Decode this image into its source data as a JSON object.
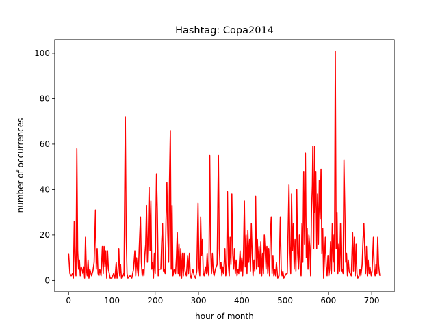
{
  "chart_data": {
    "type": "line",
    "title": "Hashtag: Copa2014",
    "xlabel": "hour of month",
    "ylabel": "number of occurrences",
    "xlim": [
      -32,
      752
    ],
    "ylim": [
      -5,
      106
    ],
    "xticks": [
      0,
      100,
      200,
      300,
      400,
      500,
      600,
      700
    ],
    "yticks": [
      0,
      20,
      40,
      60,
      80,
      100
    ],
    "grid": false,
    "legend": "none",
    "series": [
      {
        "color": "#ff0000",
        "points": [
          [
            0,
            12
          ],
          [
            3,
            3
          ],
          [
            6,
            2
          ],
          [
            9,
            3
          ],
          [
            11,
            1
          ],
          [
            13,
            26
          ],
          [
            15,
            8
          ],
          [
            17,
            2
          ],
          [
            19,
            58
          ],
          [
            21,
            13
          ],
          [
            23,
            5
          ],
          [
            25,
            9
          ],
          [
            27,
            2
          ],
          [
            29,
            6
          ],
          [
            31,
            5
          ],
          [
            33,
            3
          ],
          [
            35,
            6
          ],
          [
            37,
            1
          ],
          [
            39,
            19
          ],
          [
            41,
            5
          ],
          [
            43,
            2
          ],
          [
            45,
            9
          ],
          [
            47,
            1
          ],
          [
            49,
            5
          ],
          [
            53,
            2
          ],
          [
            56,
            4
          ],
          [
            59,
            8
          ],
          [
            62,
            31
          ],
          [
            64,
            5
          ],
          [
            66,
            14
          ],
          [
            68,
            3
          ],
          [
            70,
            2
          ],
          [
            72,
            5
          ],
          [
            75,
            2
          ],
          [
            78,
            15
          ],
          [
            80,
            3
          ],
          [
            82,
            15
          ],
          [
            84,
            6
          ],
          [
            86,
            13
          ],
          [
            88,
            1
          ],
          [
            90,
            13
          ],
          [
            92,
            5
          ],
          [
            94,
            3
          ],
          [
            96,
            1
          ],
          [
            100,
            1
          ],
          [
            104,
            3
          ],
          [
            107,
            1
          ],
          [
            110,
            8
          ],
          [
            112,
            1
          ],
          [
            114,
            3
          ],
          [
            116,
            14
          ],
          [
            118,
            2
          ],
          [
            120,
            7
          ],
          [
            122,
            1
          ],
          [
            126,
            3
          ],
          [
            128,
            2
          ],
          [
            131,
            72
          ],
          [
            133,
            20
          ],
          [
            135,
            3
          ],
          [
            137,
            1
          ],
          [
            142,
            2
          ],
          [
            146,
            1
          ],
          [
            150,
            5
          ],
          [
            153,
            13
          ],
          [
            155,
            2
          ],
          [
            157,
            10
          ],
          [
            159,
            5
          ],
          [
            161,
            2
          ],
          [
            163,
            14
          ],
          [
            166,
            28
          ],
          [
            168,
            8
          ],
          [
            170,
            2
          ],
          [
            172,
            5
          ],
          [
            174,
            2
          ],
          [
            176,
            11
          ],
          [
            178,
            16
          ],
          [
            180,
            33
          ],
          [
            182,
            8
          ],
          [
            184,
            20
          ],
          [
            186,
            41
          ],
          [
            188,
            13
          ],
          [
            190,
            35
          ],
          [
            192,
            5
          ],
          [
            194,
            8
          ],
          [
            196,
            1
          ],
          [
            198,
            12
          ],
          [
            200,
            3
          ],
          [
            203,
            47
          ],
          [
            205,
            30
          ],
          [
            207,
            2
          ],
          [
            209,
            5
          ],
          [
            213,
            5
          ],
          [
            215,
            17
          ],
          [
            217,
            25
          ],
          [
            219,
            4
          ],
          [
            221,
            5
          ],
          [
            223,
            3
          ],
          [
            225,
            26
          ],
          [
            227,
            43
          ],
          [
            229,
            21
          ],
          [
            231,
            8
          ],
          [
            233,
            44
          ],
          [
            235,
            66
          ],
          [
            237,
            5
          ],
          [
            239,
            33
          ],
          [
            241,
            2
          ],
          [
            244,
            5
          ],
          [
            247,
            3
          ],
          [
            249,
            10
          ],
          [
            251,
            21
          ],
          [
            253,
            3
          ],
          [
            255,
            16
          ],
          [
            257,
            2
          ],
          [
            259,
            14
          ],
          [
            261,
            1
          ],
          [
            263,
            12
          ],
          [
            265,
            2
          ],
          [
            267,
            12
          ],
          [
            269,
            4
          ],
          [
            272,
            2
          ],
          [
            275,
            11
          ],
          [
            277,
            3
          ],
          [
            279,
            12
          ],
          [
            281,
            2
          ],
          [
            283,
            1
          ],
          [
            287,
            5
          ],
          [
            290,
            2
          ],
          [
            293,
            1
          ],
          [
            296,
            4
          ],
          [
            299,
            34
          ],
          [
            301,
            6
          ],
          [
            303,
            2
          ],
          [
            305,
            28
          ],
          [
            307,
            11
          ],
          [
            309,
            18
          ],
          [
            311,
            3
          ],
          [
            313,
            2
          ],
          [
            316,
            6
          ],
          [
            318,
            3
          ],
          [
            320,
            12
          ],
          [
            322,
            4
          ],
          [
            324,
            2
          ],
          [
            326,
            55
          ],
          [
            328,
            14
          ],
          [
            330,
            3
          ],
          [
            332,
            12
          ],
          [
            334,
            4
          ],
          [
            336,
            2
          ],
          [
            339,
            5
          ],
          [
            343,
            7
          ],
          [
            346,
            55
          ],
          [
            348,
            14
          ],
          [
            350,
            5
          ],
          [
            352,
            8
          ],
          [
            354,
            2
          ],
          [
            356,
            6
          ],
          [
            358,
            3
          ],
          [
            361,
            14
          ],
          [
            363,
            2
          ],
          [
            365,
            7
          ],
          [
            367,
            39
          ],
          [
            369,
            7
          ],
          [
            371,
            2
          ],
          [
            373,
            19
          ],
          [
            375,
            7
          ],
          [
            377,
            38
          ],
          [
            379,
            12
          ],
          [
            381,
            5
          ],
          [
            383,
            14
          ],
          [
            385,
            3
          ],
          [
            387,
            9
          ],
          [
            389,
            2
          ],
          [
            391,
            5
          ],
          [
            393,
            3
          ],
          [
            396,
            13
          ],
          [
            398,
            4
          ],
          [
            400,
            10
          ],
          [
            402,
            2
          ],
          [
            404,
            13
          ],
          [
            406,
            35
          ],
          [
            408,
            6
          ],
          [
            410,
            20
          ],
          [
            412,
            3
          ],
          [
            414,
            22
          ],
          [
            416,
            8
          ],
          [
            418,
            18
          ],
          [
            420,
            4
          ],
          [
            422,
            25
          ],
          [
            424,
            12
          ],
          [
            426,
            2
          ],
          [
            428,
            9
          ],
          [
            430,
            4
          ],
          [
            432,
            37
          ],
          [
            434,
            5
          ],
          [
            436,
            18
          ],
          [
            438,
            6
          ],
          [
            440,
            15
          ],
          [
            442,
            3
          ],
          [
            444,
            17
          ],
          [
            446,
            2
          ],
          [
            448,
            12
          ],
          [
            450,
            3
          ],
          [
            452,
            20
          ],
          [
            454,
            13
          ],
          [
            456,
            5
          ],
          [
            458,
            15
          ],
          [
            460,
            3
          ],
          [
            462,
            14
          ],
          [
            464,
            2
          ],
          [
            466,
            20
          ],
          [
            468,
            28
          ],
          [
            470,
            3
          ],
          [
            472,
            11
          ],
          [
            474,
            2
          ],
          [
            476,
            5
          ],
          [
            478,
            2
          ],
          [
            480,
            8
          ],
          [
            483,
            1
          ],
          [
            486,
            2
          ],
          [
            489,
            28
          ],
          [
            491,
            5
          ],
          [
            493,
            2
          ],
          [
            495,
            4
          ],
          [
            497,
            1
          ],
          [
            500,
            2
          ],
          [
            503,
            3
          ],
          [
            505,
            3
          ],
          [
            507,
            22
          ],
          [
            509,
            42
          ],
          [
            511,
            15
          ],
          [
            513,
            3
          ],
          [
            515,
            38
          ],
          [
            517,
            13
          ],
          [
            519,
            25
          ],
          [
            521,
            5
          ],
          [
            523,
            18
          ],
          [
            525,
            4
          ],
          [
            527,
            40
          ],
          [
            529,
            12
          ],
          [
            531,
            5
          ],
          [
            533,
            20
          ],
          [
            535,
            5
          ],
          [
            537,
            2
          ],
          [
            539,
            25
          ],
          [
            541,
            8
          ],
          [
            543,
            48
          ],
          [
            545,
            16
          ],
          [
            547,
            56
          ],
          [
            549,
            10
          ],
          [
            551,
            23
          ],
          [
            553,
            5
          ],
          [
            555,
            20
          ],
          [
            557,
            15
          ],
          [
            559,
            2
          ],
          [
            561,
            30
          ],
          [
            563,
            42
          ],
          [
            564,
            59
          ],
          [
            566,
            14
          ],
          [
            568,
            59
          ],
          [
            569,
            30
          ],
          [
            571,
            48
          ],
          [
            573,
            14
          ],
          [
            575,
            38
          ],
          [
            577,
            16
          ],
          [
            579,
            44
          ],
          [
            581,
            27
          ],
          [
            583,
            49
          ],
          [
            585,
            12
          ],
          [
            587,
            23
          ],
          [
            589,
            1
          ],
          [
            593,
            19
          ],
          [
            595,
            6
          ],
          [
            597,
            2
          ],
          [
            599,
            11
          ],
          [
            601,
            2
          ],
          [
            603,
            5
          ],
          [
            605,
            17
          ],
          [
            607,
            3
          ],
          [
            609,
            25
          ],
          [
            611,
            8
          ],
          [
            613,
            20
          ],
          [
            614,
            4
          ],
          [
            616,
            101
          ],
          [
            618,
            14
          ],
          [
            620,
            30
          ],
          [
            622,
            3
          ],
          [
            624,
            16
          ],
          [
            626,
            4
          ],
          [
            628,
            25
          ],
          [
            630,
            4
          ],
          [
            632,
            5
          ],
          [
            634,
            3
          ],
          [
            636,
            53
          ],
          [
            638,
            32
          ],
          [
            640,
            8
          ],
          [
            642,
            12
          ],
          [
            644,
            2
          ],
          [
            646,
            9
          ],
          [
            648,
            4
          ],
          [
            650,
            3
          ],
          [
            653,
            2
          ],
          [
            656,
            21
          ],
          [
            658,
            4
          ],
          [
            660,
            19
          ],
          [
            662,
            2
          ],
          [
            664,
            16
          ],
          [
            666,
            3
          ],
          [
            668,
            1
          ],
          [
            671,
            2
          ],
          [
            673,
            5
          ],
          [
            675,
            2
          ],
          [
            678,
            7
          ],
          [
            680,
            18
          ],
          [
            682,
            25
          ],
          [
            684,
            13
          ],
          [
            686,
            3
          ],
          [
            688,
            15
          ],
          [
            690,
            2
          ],
          [
            692,
            9
          ],
          [
            694,
            3
          ],
          [
            696,
            6
          ],
          [
            699,
            2
          ],
          [
            701,
            4
          ],
          [
            704,
            19
          ],
          [
            706,
            5
          ],
          [
            708,
            2
          ],
          [
            710,
            7
          ],
          [
            712,
            3
          ],
          [
            714,
            19
          ],
          [
            716,
            7
          ],
          [
            718,
            3
          ],
          [
            719,
            2
          ]
        ]
      }
    ]
  }
}
